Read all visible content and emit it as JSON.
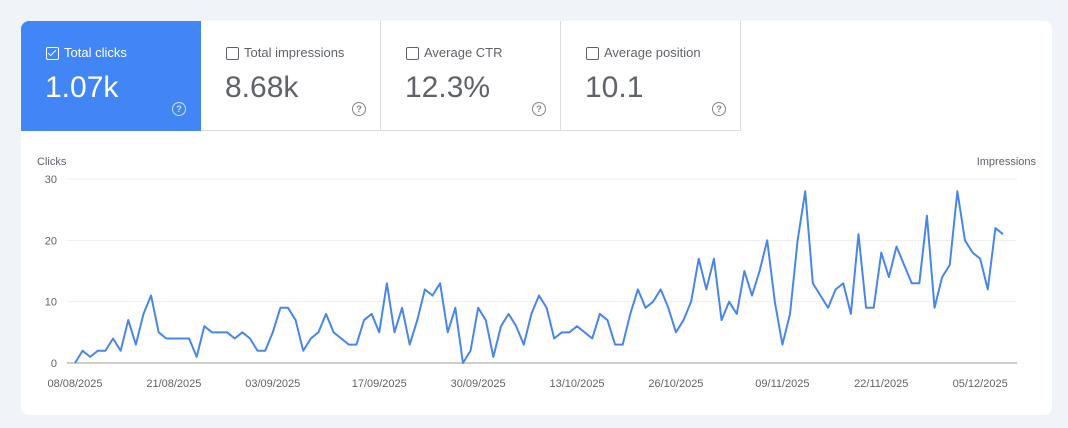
{
  "metrics": [
    {
      "label": "Total clicks",
      "value": "1.07k",
      "checked": true,
      "help_icon": "help-circle-icon"
    },
    {
      "label": "Total impressions",
      "value": "8.68k",
      "checked": false,
      "help_icon": "help-circle-icon"
    },
    {
      "label": "Average CTR",
      "value": "12.3%",
      "checked": false,
      "help_icon": "help-circle-icon"
    },
    {
      "label": "Average position",
      "value": "10.1",
      "checked": false,
      "help_icon": "help-circle-icon"
    }
  ],
  "colors": {
    "accent": "#4285f4",
    "line": "#4a86e8",
    "grid": "#eeeeee",
    "text": "#5f6368"
  },
  "chart_data": {
    "type": "line",
    "ylabel": "Clicks",
    "ylabel_right": "Impressions",
    "ylim": [
      0,
      30
    ],
    "yticks": [
      "0",
      "10",
      "20",
      "30"
    ],
    "xticks": [
      "08/08/2025",
      "21/08/2025",
      "03/09/2025",
      "17/09/2025",
      "30/09/2025",
      "13/10/2025",
      "26/10/2025",
      "09/11/2025",
      "22/11/2025",
      "05/12/2025"
    ],
    "grid": true,
    "start_date": "08/08/2025",
    "series": [
      {
        "values": [
          0,
          2,
          1,
          2,
          2,
          4,
          2,
          7,
          3,
          8,
          11,
          5,
          4,
          4,
          4,
          4,
          1,
          6,
          5,
          5,
          5,
          4,
          5,
          4,
          2,
          2,
          5,
          9,
          9,
          7,
          2,
          4,
          5,
          8,
          5,
          4,
          3,
          3,
          7,
          8,
          5,
          13,
          5,
          9,
          3,
          7,
          12,
          11,
          13,
          5,
          9,
          0,
          2,
          9,
          7,
          1,
          6,
          8,
          6,
          3,
          8,
          11,
          9,
          4,
          5,
          5,
          6,
          5,
          4,
          8,
          7,
          3,
          3,
          8,
          12,
          9,
          10,
          12,
          9,
          5,
          7,
          10,
          17,
          12,
          17,
          7,
          10,
          8,
          15,
          11,
          15,
          20,
          10,
          3,
          8,
          20,
          28,
          13,
          11,
          9,
          12,
          13,
          8,
          21,
          9,
          9,
          18,
          14,
          19,
          16,
          13,
          13,
          24,
          9,
          14,
          16,
          28,
          20,
          18,
          17,
          12,
          22,
          21
        ]
      }
    ]
  }
}
